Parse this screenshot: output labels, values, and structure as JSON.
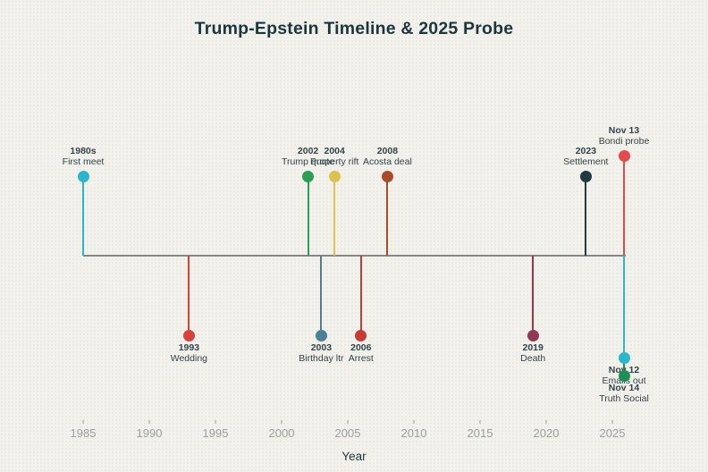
{
  "chart_data": {
    "type": "timeline",
    "title": "Trump-Epstein Timeline & 2025 Probe",
    "xlabel": "Year",
    "axis": {
      "x_min": 1985,
      "x_max": 2026,
      "ticks": [
        1985,
        1990,
        1995,
        2000,
        2005,
        2010,
        2015,
        2020,
        2025
      ],
      "grid": false,
      "legend": "none"
    },
    "events": [
      {
        "label": "1980s",
        "desc": "First meet",
        "year_value": 1985,
        "side": "above",
        "level": 88,
        "color": "#2ab7cb"
      },
      {
        "label": "1993",
        "desc": "Wedding",
        "year_value": 1993,
        "side": "below",
        "level": 90,
        "color": "#d9413d"
      },
      {
        "label": "2002",
        "desc": "Trump quote",
        "year_value": 2002,
        "side": "above",
        "level": 88,
        "color": "#2f9e55"
      },
      {
        "label": "2003",
        "desc": "Birthday ltr",
        "year_value": 2003,
        "side": "below",
        "level": 90,
        "color": "#4d7f96"
      },
      {
        "label": "2004",
        "desc": "Property rift",
        "year_value": 2004,
        "side": "above",
        "level": 88,
        "color": "#ddc14e"
      },
      {
        "label": "2006",
        "desc": "Arrest",
        "year_value": 2006,
        "side": "below",
        "level": 90,
        "color": "#c43c38"
      },
      {
        "label": "2008",
        "desc": "Acosta deal",
        "year_value": 2008,
        "side": "above",
        "level": 88,
        "color": "#a84c2c"
      },
      {
        "label": "2019",
        "desc": "Death",
        "year_value": 2019,
        "side": "below",
        "level": 90,
        "color": "#8f3a52"
      },
      {
        "label": "2023",
        "desc": "Settlement",
        "year_value": 2023,
        "side": "above",
        "level": 88,
        "color": "#213a42"
      },
      {
        "label": "Nov 13",
        "desc": "Bondi probe",
        "year_value": 2025.88,
        "side": "above",
        "level": 111,
        "color": "#e14b4b"
      },
      {
        "label": "Nov 14",
        "desc": "Truth Social",
        "year_value": 2025.88,
        "side": "below",
        "level": 135,
        "color": "#1f9055"
      },
      {
        "label": "Nov 12",
        "desc": "Emails out",
        "year_value": 2025.88,
        "side": "below",
        "level": 115,
        "color": "#2ab7cb"
      }
    ]
  },
  "colors": {
    "background": "#f2f1eb",
    "axis_line": "#868686",
    "tick_label": "#9aa09b",
    "event_label_text": "#33444b",
    "title_text": "#1b363d"
  }
}
